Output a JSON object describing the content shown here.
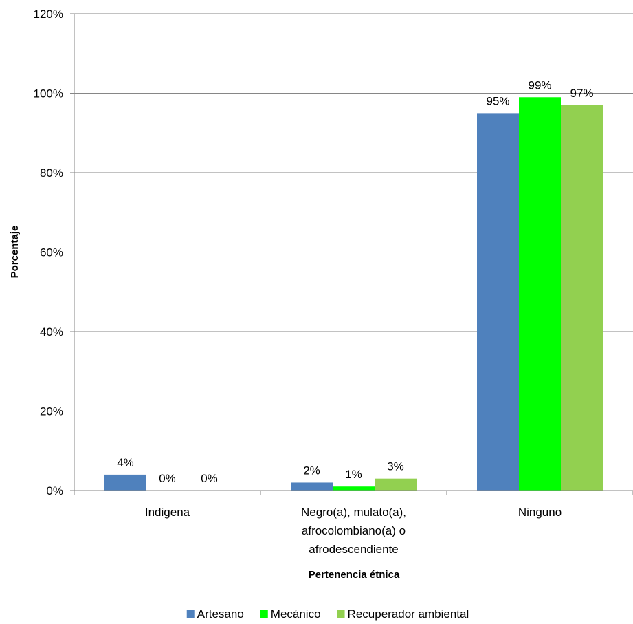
{
  "chart_data": {
    "type": "bar",
    "title": "",
    "xlabel": "Pertenencia étnica",
    "ylabel": "Porcentaje",
    "ylim": [
      0,
      120
    ],
    "yticks": [
      0,
      20,
      40,
      60,
      80,
      100,
      120
    ],
    "ytick_labels": [
      "0%",
      "20%",
      "40%",
      "60%",
      "80%",
      "100%",
      "120%"
    ],
    "categories": [
      [
        "Indigena"
      ],
      [
        "Negro(a), mulato(a),",
        "afrocolombiano(a) o",
        "afrodescendiente"
      ],
      [
        "Ninguno"
      ]
    ],
    "series": [
      {
        "name": "Artesano",
        "color": "#4F81BD",
        "values": [
          4,
          2,
          95
        ],
        "labels": [
          "4%",
          "2%",
          "95%"
        ]
      },
      {
        "name": "Mecánico",
        "color": "#00FF00",
        "values": [
          0,
          1,
          99
        ],
        "labels": [
          "0%",
          "1%",
          "99%"
        ]
      },
      {
        "name": "Recuperador ambiental",
        "color": "#92D050",
        "values": [
          0,
          3,
          97
        ],
        "labels": [
          "0%",
          "3%",
          "97%"
        ]
      }
    ],
    "grid": true,
    "legend_position": "bottom"
  }
}
